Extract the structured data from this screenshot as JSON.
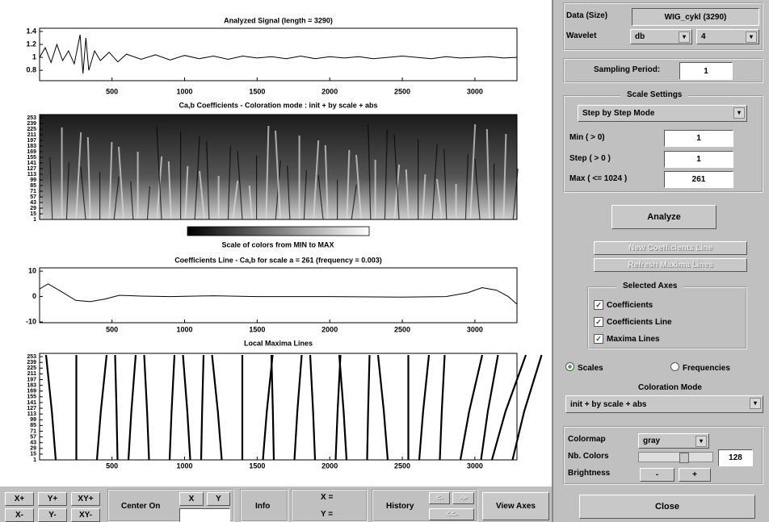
{
  "chart_data": [
    {
      "type": "line",
      "title": "Analyzed Signal  (length = 3290)",
      "color": "#000000",
      "x": [
        1,
        40,
        80,
        120,
        160,
        200,
        240,
        280,
        300,
        320,
        340,
        380,
        420,
        480,
        540,
        600,
        700,
        800,
        900,
        1000,
        1100,
        1200,
        1300,
        1400,
        1500,
        1600,
        1700,
        1800,
        1900,
        2000,
        2100,
        2200,
        2300,
        2400,
        2500,
        2600,
        2700,
        2800,
        2900,
        3000,
        3100,
        3200,
        3290
      ],
      "values": [
        1.0,
        1.15,
        0.92,
        1.2,
        0.95,
        1.1,
        0.9,
        1.35,
        0.75,
        1.3,
        0.8,
        1.1,
        0.95,
        1.08,
        0.93,
        1.05,
        0.97,
        1.04,
        0.96,
        1.03,
        0.98,
        1.02,
        0.97,
        1.02,
        0.99,
        1.01,
        0.98,
        1.02,
        0.98,
        1.01,
        0.99,
        1.01,
        0.98,
        1.0,
        1.02,
        1.0,
        0.98,
        1.01,
        0.99,
        1.0,
        1.01,
        0.99,
        1.0
      ],
      "xlim": [
        1,
        3290
      ],
      "xticks": [
        500,
        1000,
        1500,
        2000,
        2500,
        3000
      ],
      "ylim": [
        0.64,
        1.45
      ],
      "yticks": [
        0.8,
        1,
        1.2,
        1.4
      ]
    },
    {
      "type": "scalogram",
      "title": "Ca,b Coefficients  - Coloration mode : init + by scale + abs",
      "colorbar_label": "Scale of colors from MIN to MAX",
      "xlim": [
        1,
        3290
      ],
      "ylim": [
        1,
        261
      ],
      "yticks": [
        1,
        15,
        29,
        43,
        57,
        71,
        85,
        99,
        113,
        127,
        141,
        155,
        169,
        183,
        197,
        211,
        225,
        239,
        253
      ]
    },
    {
      "type": "line",
      "title": "Coefficients Line - Ca,b  for scale a = 261  (frequency =  0.003)",
      "color": "#000000",
      "x": [
        1,
        60,
        150,
        250,
        350,
        450,
        550,
        700,
        900,
        1200,
        1500,
        2000,
        2500,
        2800,
        2950,
        3050,
        3150,
        3230,
        3290
      ],
      "values": [
        3,
        5,
        2,
        -1.5,
        -2,
        -1,
        0.5,
        0.2,
        0,
        0.3,
        0,
        0,
        -0.2,
        0,
        1.5,
        3.5,
        2.5,
        0,
        -3
      ],
      "xlim": [
        1,
        3290
      ],
      "xticks": [
        500,
        1000,
        1500,
        2000,
        2500,
        3000
      ],
      "ylim": [
        -10.3,
        11.3
      ],
      "yticks": [
        -10,
        0,
        10
      ]
    },
    {
      "type": "maxima",
      "title": "Local Maxima Lines",
      "xlim": [
        1,
        3290
      ],
      "xticks": [
        500,
        1000,
        1500,
        2000,
        2500,
        3000
      ],
      "ylim": [
        1,
        261
      ],
      "yticks": [
        1,
        15,
        29,
        43,
        57,
        71,
        85,
        99,
        113,
        127,
        141,
        155,
        169,
        183,
        197,
        211,
        225,
        239,
        253
      ]
    }
  ],
  "controls": {
    "data_label": "Data  (Size)",
    "data_value": "WIG_cykl  (3290)",
    "wavelet_label": "Wavelet",
    "wavelet_family": "db",
    "wavelet_number": "4",
    "sampling_label": "Sampling Period:",
    "sampling_value": "1",
    "scale_settings": "Scale Settings",
    "scale_mode": "Step by Step Mode",
    "min_label": "Min  ( > 0)",
    "min_value": "1",
    "step_label": "Step ( > 0 )",
    "step_value": "1",
    "max_label": "Max  ( <= 1024 )",
    "max_value": "261",
    "analyze": "Analyze",
    "new_coef": "New Coefficients Line",
    "refresh": "Refresh Maxima Lines",
    "selected_axes": "Selected Axes",
    "checks": [
      "Coefficients",
      "Coefficients Line",
      "Maxima Lines"
    ],
    "radio": [
      "Scales",
      "Frequencies"
    ],
    "coloration_title": "Coloration Mode",
    "coloration_value": "init + by scale + abs",
    "colormap_label": "Colormap",
    "colormap_value": "gray",
    "nb_colors_label": "Nb. Colors",
    "nb_colors_value": "128",
    "brightness_label": "Brightness",
    "bright_minus": "-",
    "bright_plus": "+",
    "close": "Close"
  },
  "toolbar": {
    "zoom": [
      "X+",
      "Y+",
      "XY+",
      "X-",
      "Y-",
      "XY-"
    ],
    "center_on": "Center On",
    "center_x": "X",
    "center_y": "Y",
    "info": "Info",
    "info_x": "X =",
    "info_y": "Y =",
    "history": "History",
    "hist_back": "<-",
    "hist_fwd": "->",
    "hist_first": "<<-",
    "view_axes": "View Axes"
  }
}
